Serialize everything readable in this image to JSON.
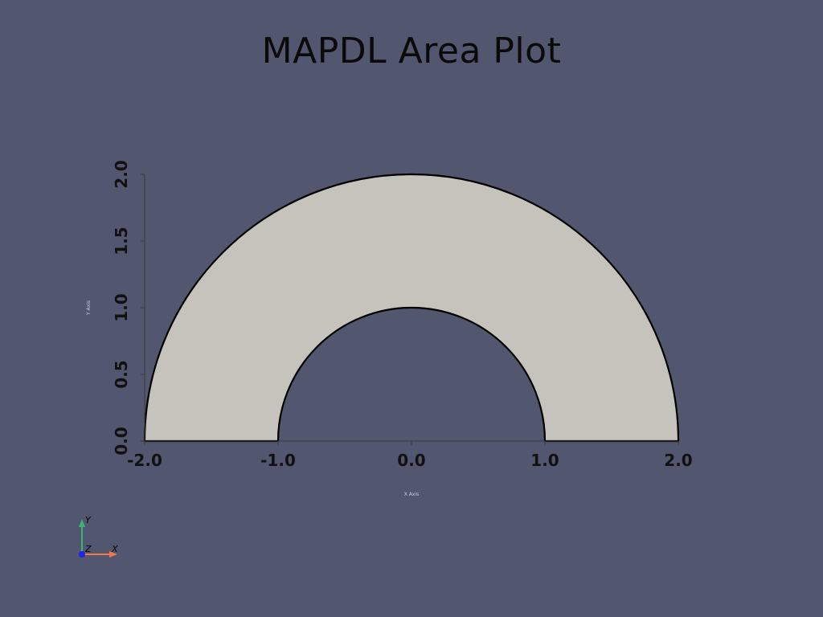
{
  "chart_data": {
    "type": "area",
    "title": "MAPDL Area Plot",
    "xlabel": "X Axis",
    "ylabel": "Y Axis",
    "xlim": [
      -2.0,
      2.0
    ],
    "ylim": [
      0.0,
      2.0
    ],
    "x_ticks": [
      "-2.0",
      "-1.0",
      "0.0",
      "1.0",
      "2.0"
    ],
    "y_ticks": [
      "0.0",
      "0.5",
      "1.0",
      "1.5",
      "2.0"
    ],
    "grid": false,
    "shape": {
      "kind": "half-annulus",
      "center": [
        0.0,
        0.0
      ],
      "inner_radius": 1.0,
      "outer_radius": 2.0,
      "theta_range_deg": [
        0,
        180
      ],
      "fill": "#c6c3bd",
      "edge": "#000000"
    }
  },
  "orientation_widget": {
    "labels": {
      "x": "X",
      "y": "Y",
      "z": "Z"
    },
    "colors": {
      "x": "#ef7a45",
      "y": "#3cb371",
      "z": "#2222ee"
    }
  },
  "colors": {
    "background": "#52566e",
    "axis": "#3a3a3a"
  }
}
